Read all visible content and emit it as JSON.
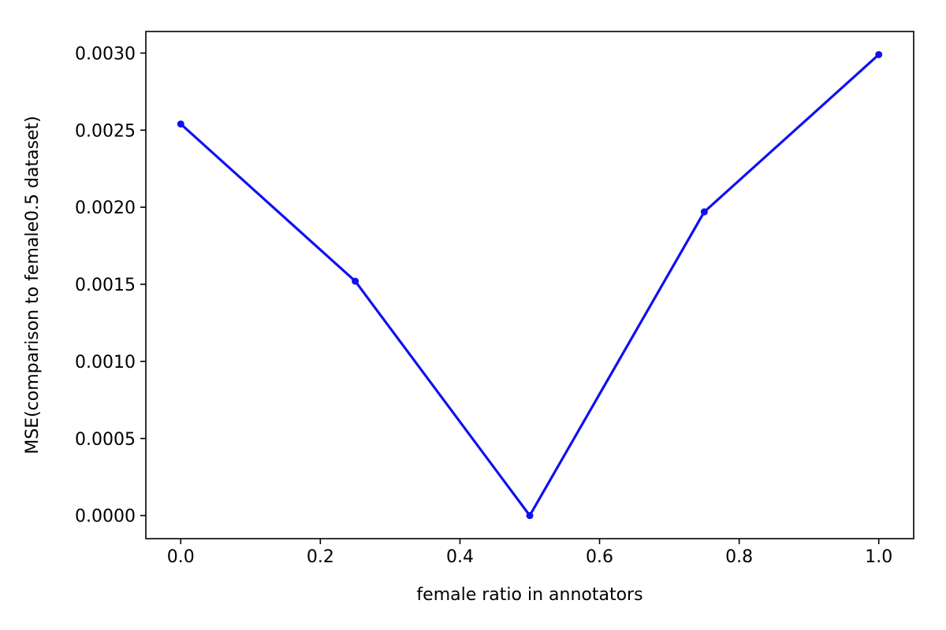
{
  "chart_data": {
    "type": "line",
    "title": "",
    "xlabel": "female ratio in annotators",
    "ylabel": "MSE(comparison to female0.5 dataset)",
    "xlim": [
      -0.05,
      1.05
    ],
    "ylim": [
      -0.00015,
      0.00314
    ],
    "xticks": [
      0.0,
      0.2,
      0.4,
      0.6,
      0.8,
      1.0
    ],
    "xtick_labels": [
      "0.0",
      "0.2",
      "0.4",
      "0.6",
      "0.8",
      "1.0"
    ],
    "yticks": [
      0.0,
      0.0005,
      0.001,
      0.0015,
      0.002,
      0.0025,
      0.003
    ],
    "ytick_labels": [
      "0.0000",
      "0.0005",
      "0.0010",
      "0.0015",
      "0.0020",
      "0.0025",
      "0.0030"
    ],
    "grid": false,
    "series": [
      {
        "color": "#1010f0",
        "marker": "circle",
        "x": [
          0.0,
          0.25,
          0.5,
          0.75,
          1.0
        ],
        "y": [
          0.00254,
          0.00152,
          0.0,
          0.00197,
          0.00299
        ]
      }
    ]
  }
}
